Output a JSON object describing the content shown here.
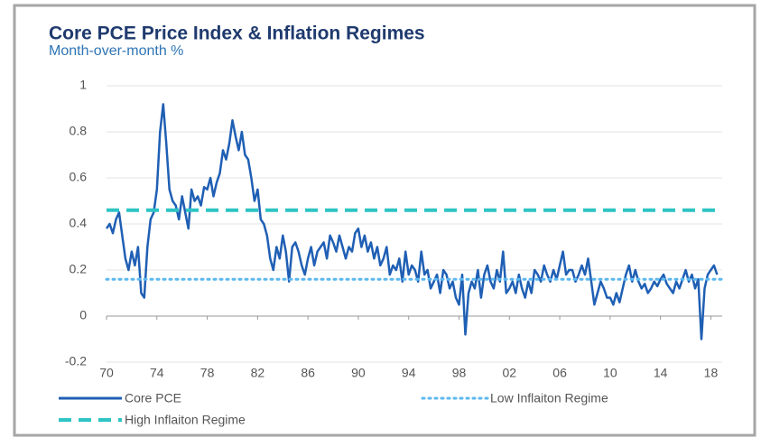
{
  "chart_data": {
    "type": "line",
    "title": "Core PCE Price Index & Inflation Regimes",
    "subtitle": "Month-over-month %",
    "x": [
      1970,
      1970.25,
      1970.5,
      1970.75,
      1971,
      1971.25,
      1971.5,
      1971.75,
      1972,
      1972.25,
      1972.5,
      1972.75,
      1973,
      1973.25,
      1973.5,
      1973.75,
      1974,
      1974.25,
      1974.5,
      1974.75,
      1975,
      1975.25,
      1975.5,
      1975.75,
      1976,
      1976.25,
      1976.5,
      1976.75,
      1977,
      1977.25,
      1977.5,
      1977.75,
      1978,
      1978.25,
      1978.5,
      1978.75,
      1979,
      1979.25,
      1979.5,
      1979.75,
      1980,
      1980.25,
      1980.5,
      1980.75,
      1981,
      1981.25,
      1981.5,
      1981.75,
      1982,
      1982.25,
      1982.5,
      1982.75,
      1983,
      1983.25,
      1983.5,
      1983.75,
      1984,
      1984.25,
      1984.5,
      1984.75,
      1985,
      1985.25,
      1985.5,
      1985.75,
      1986,
      1986.25,
      1986.5,
      1986.75,
      1987,
      1987.25,
      1987.5,
      1987.75,
      1988,
      1988.25,
      1988.5,
      1988.75,
      1989,
      1989.25,
      1989.5,
      1989.75,
      1990,
      1990.25,
      1990.5,
      1990.75,
      1991,
      1991.25,
      1991.5,
      1991.75,
      1992,
      1992.25,
      1992.5,
      1992.75,
      1993,
      1993.25,
      1993.5,
      1993.75,
      1994,
      1994.25,
      1994.5,
      1994.75,
      1995,
      1995.25,
      1995.5,
      1995.75,
      1996,
      1996.25,
      1996.5,
      1996.75,
      1997,
      1997.25,
      1997.5,
      1997.75,
      1998,
      1998.25,
      1998.5,
      1998.75,
      1999,
      1999.25,
      1999.5,
      1999.75,
      2000,
      2000.25,
      2000.5,
      2000.75,
      2001,
      2001.25,
      2001.5,
      2001.75,
      2002,
      2002.25,
      2002.5,
      2002.75,
      2003,
      2003.25,
      2003.5,
      2003.75,
      2004,
      2004.25,
      2004.5,
      2004.75,
      2005,
      2005.25,
      2005.5,
      2005.75,
      2006,
      2006.25,
      2006.5,
      2006.75,
      2007,
      2007.25,
      2007.5,
      2007.75,
      2008,
      2008.25,
      2008.5,
      2008.75,
      2009,
      2009.25,
      2009.5,
      2009.75,
      2010,
      2010.25,
      2010.5,
      2010.75,
      2011,
      2011.25,
      2011.5,
      2011.75,
      2012,
      2012.25,
      2012.5,
      2012.75,
      2013,
      2013.25,
      2013.5,
      2013.75,
      2014,
      2014.25,
      2014.5,
      2014.75,
      2015,
      2015.25,
      2015.5,
      2015.75,
      2016,
      2016.25,
      2016.5,
      2016.75,
      2017,
      2017.25,
      2017.5,
      2017.75,
      2018,
      2018.25,
      2018.5
    ],
    "series": [
      {
        "name": "Core PCE",
        "color": "#1f5fb4",
        "values": [
          0.38,
          0.4,
          0.36,
          0.42,
          0.45,
          0.35,
          0.25,
          0.2,
          0.28,
          0.22,
          0.3,
          0.1,
          0.08,
          0.3,
          0.42,
          0.45,
          0.55,
          0.8,
          0.92,
          0.75,
          0.55,
          0.5,
          0.48,
          0.42,
          0.52,
          0.45,
          0.38,
          0.55,
          0.5,
          0.52,
          0.48,
          0.56,
          0.55,
          0.6,
          0.52,
          0.58,
          0.62,
          0.72,
          0.68,
          0.75,
          0.85,
          0.78,
          0.72,
          0.8,
          0.7,
          0.68,
          0.6,
          0.5,
          0.55,
          0.42,
          0.4,
          0.35,
          0.25,
          0.2,
          0.3,
          0.25,
          0.35,
          0.28,
          0.15,
          0.3,
          0.32,
          0.28,
          0.22,
          0.18,
          0.25,
          0.3,
          0.22,
          0.28,
          0.3,
          0.32,
          0.25,
          0.35,
          0.32,
          0.28,
          0.35,
          0.3,
          0.25,
          0.3,
          0.28,
          0.36,
          0.38,
          0.3,
          0.35,
          0.28,
          0.32,
          0.25,
          0.3,
          0.22,
          0.25,
          0.3,
          0.18,
          0.22,
          0.2,
          0.25,
          0.15,
          0.28,
          0.18,
          0.22,
          0.2,
          0.15,
          0.28,
          0.18,
          0.2,
          0.12,
          0.15,
          0.18,
          0.1,
          0.2,
          0.18,
          0.12,
          0.15,
          0.08,
          0.05,
          0.18,
          -0.08,
          0.1,
          0.15,
          0.12,
          0.2,
          0.08,
          0.18,
          0.22,
          0.15,
          0.12,
          0.2,
          0.15,
          0.28,
          0.1,
          0.12,
          0.15,
          0.1,
          0.18,
          0.12,
          0.08,
          0.15,
          0.1,
          0.2,
          0.18,
          0.15,
          0.22,
          0.18,
          0.15,
          0.2,
          0.16,
          0.22,
          0.28,
          0.18,
          0.2,
          0.2,
          0.15,
          0.18,
          0.22,
          0.18,
          0.25,
          0.15,
          0.05,
          0.1,
          0.15,
          0.12,
          0.08,
          0.08,
          0.05,
          0.1,
          0.06,
          0.12,
          0.18,
          0.22,
          0.15,
          0.2,
          0.15,
          0.12,
          0.14,
          0.1,
          0.12,
          0.15,
          0.13,
          0.16,
          0.18,
          0.14,
          0.12,
          0.1,
          0.15,
          0.12,
          0.16,
          0.2,
          0.15,
          0.18,
          0.12,
          0.16,
          -0.1,
          0.12,
          0.18,
          0.2,
          0.22,
          0.18
        ]
      }
    ],
    "reference_lines": [
      {
        "name": "Low Inflaiton Regime",
        "value": 0.16,
        "color": "#5bb8f0",
        "style": "dotted"
      },
      {
        "name": "High Inflaiton Regime",
        "value": 0.46,
        "color": "#2ec4c4",
        "style": "dashed"
      }
    ],
    "xlim": [
      1970,
      2018.9
    ],
    "xticks": [
      {
        "value": 1970,
        "label": "70"
      },
      {
        "value": 1974,
        "label": "74"
      },
      {
        "value": 1978,
        "label": "78"
      },
      {
        "value": 1982,
        "label": "82"
      },
      {
        "value": 1986,
        "label": "86"
      },
      {
        "value": 1990,
        "label": "90"
      },
      {
        "value": 1994,
        "label": "94"
      },
      {
        "value": 1998,
        "label": "98"
      },
      {
        "value": 2002,
        "label": "02"
      },
      {
        "value": 2006,
        "label": "06"
      },
      {
        "value": 2010,
        "label": "10"
      },
      {
        "value": 2014,
        "label": "14"
      },
      {
        "value": 2018,
        "label": "18"
      }
    ],
    "ylim": [
      -0.2,
      1
    ],
    "yticks": [
      -0.2,
      0,
      0.2,
      0.4,
      0.6,
      0.8,
      1
    ],
    "grid": true
  }
}
